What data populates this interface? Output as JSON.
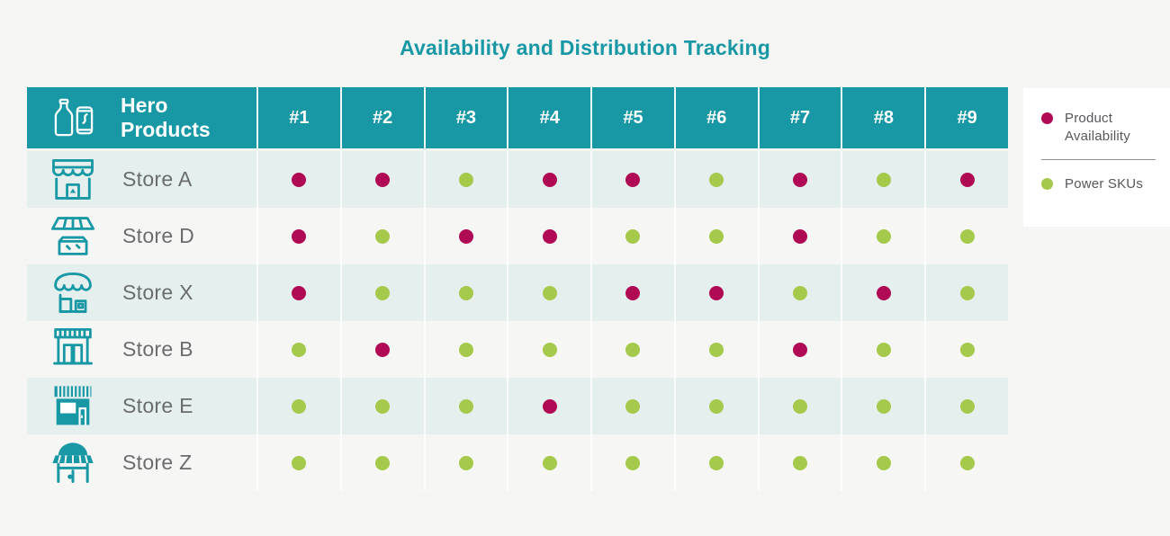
{
  "title": "Availability and Distribution Tracking",
  "colors": {
    "teal": "#1798a4",
    "magenta": "#b10a55",
    "green": "#a5c94a",
    "row_tint": "#e4efee",
    "row_plain": "#f6f6f5",
    "page_bg": "#f5f5f4"
  },
  "header": {
    "label": "Hero Products",
    "icon": "bottle-and-can-icon"
  },
  "legend": {
    "items": [
      {
        "label": "Product Availability",
        "key": "magenta"
      },
      {
        "label": "Power SKUs",
        "key": "green"
      }
    ]
  },
  "chart_data": {
    "type": "table",
    "title": "Availability and Distribution Tracking",
    "columns": [
      "#1",
      "#2",
      "#3",
      "#4",
      "#5",
      "#6",
      "#7",
      "#8",
      "#9"
    ],
    "value_legend": {
      "magenta": "Product Availability",
      "green": "Power SKUs"
    },
    "rows": [
      {
        "store": "Store A",
        "icon": "storefront-scalloped-awning-icon",
        "dots": [
          "magenta",
          "magenta",
          "green",
          "magenta",
          "magenta",
          "green",
          "magenta",
          "green",
          "magenta"
        ]
      },
      {
        "store": "Store D",
        "icon": "market-stall-icon",
        "dots": [
          "magenta",
          "green",
          "magenta",
          "magenta",
          "green",
          "green",
          "magenta",
          "green",
          "green"
        ]
      },
      {
        "store": "Store X",
        "icon": "shop-dome-awning-icon",
        "dots": [
          "magenta",
          "green",
          "green",
          "green",
          "magenta",
          "magenta",
          "green",
          "magenta",
          "green"
        ]
      },
      {
        "store": "Store B",
        "icon": "shop-striped-awning-icon",
        "dots": [
          "green",
          "magenta",
          "green",
          "green",
          "green",
          "green",
          "magenta",
          "green",
          "green"
        ]
      },
      {
        "store": "Store E",
        "icon": "shop-solid-awning-icon",
        "dots": [
          "green",
          "green",
          "green",
          "magenta",
          "green",
          "green",
          "green",
          "green",
          "green"
        ]
      },
      {
        "store": "Store Z",
        "icon": "dome-roof-shop-icon",
        "dots": [
          "green",
          "green",
          "green",
          "green",
          "green",
          "green",
          "green",
          "green",
          "green"
        ]
      }
    ]
  }
}
